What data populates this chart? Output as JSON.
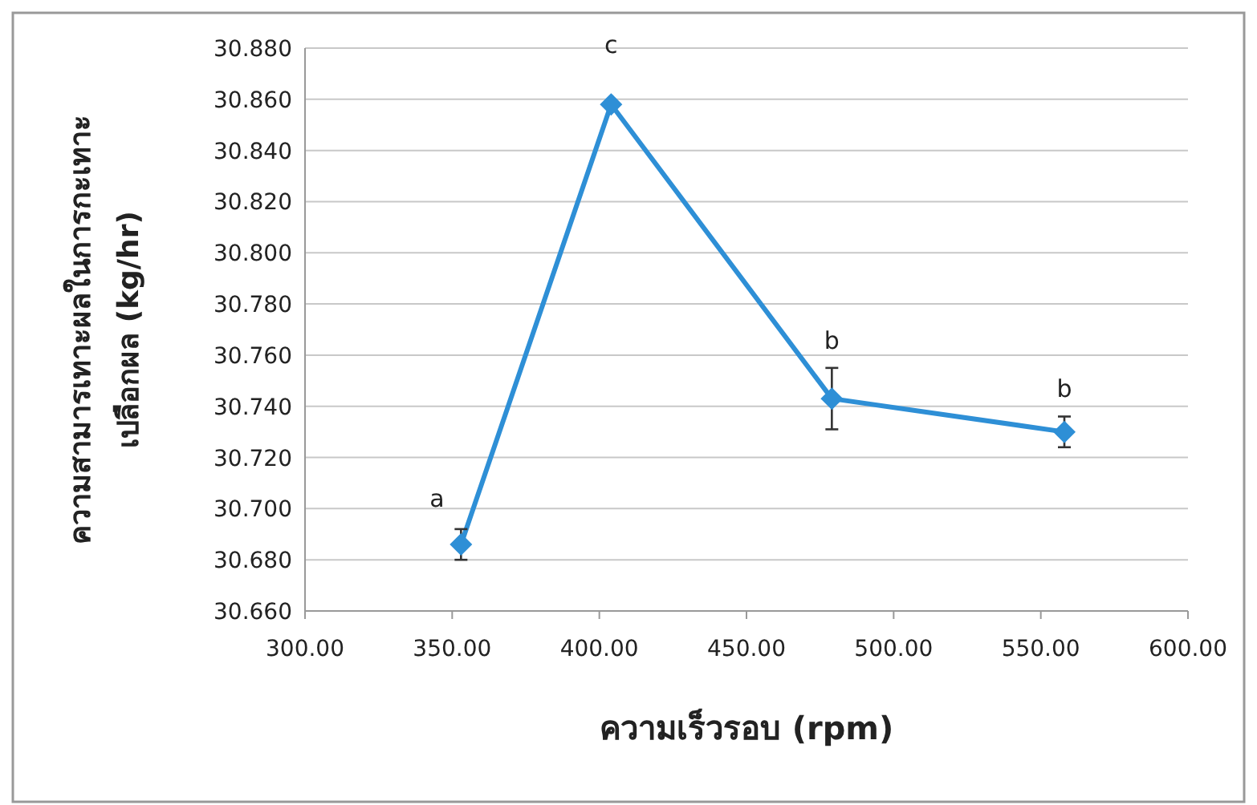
{
  "chart_data": {
    "type": "line",
    "xlabel": "ความเร็วรอบ (rpm)",
    "ylabel": "ความสามารเทาะผลในการกะเทาะ\nเปลือกผล (kg/hr)",
    "x": [
      353,
      404,
      479,
      558
    ],
    "series": [
      {
        "color": "#2e8fd6",
        "values": [
          30.686,
          30.858,
          30.743,
          30.73
        ],
        "errors": [
          0.006,
          0,
          0.012,
          0.006
        ]
      }
    ],
    "xlim": [
      300,
      600
    ],
    "ylim": [
      30.66,
      30.88
    ],
    "xticks": [
      {
        "value": 300,
        "label": "300.00"
      },
      {
        "value": 350,
        "label": "350.00"
      },
      {
        "value": 400,
        "label": "400.00"
      },
      {
        "value": 450,
        "label": "450.00"
      },
      {
        "value": 500,
        "label": "500.00"
      },
      {
        "value": 550,
        "label": "550.00"
      },
      {
        "value": 600,
        "label": "600.00"
      }
    ],
    "yticks": [
      {
        "value": 30.66,
        "label": "30.660"
      },
      {
        "value": 30.68,
        "label": "30.680"
      },
      {
        "value": 30.7,
        "label": "30.700"
      },
      {
        "value": 30.72,
        "label": "30.720"
      },
      {
        "value": 30.74,
        "label": "30.740"
      },
      {
        "value": 30.76,
        "label": "30.760"
      },
      {
        "value": 30.78,
        "label": "30.780"
      },
      {
        "value": 30.8,
        "label": "30.800"
      },
      {
        "value": 30.82,
        "label": "30.820"
      },
      {
        "value": 30.84,
        "label": "30.840"
      },
      {
        "value": 30.86,
        "label": "30.860"
      },
      {
        "value": 30.88,
        "label": "30.880"
      }
    ],
    "annotations": [
      "a",
      "c",
      "b",
      "b"
    ],
    "grid": "y",
    "marker": "diamond",
    "line_style": "solid"
  }
}
